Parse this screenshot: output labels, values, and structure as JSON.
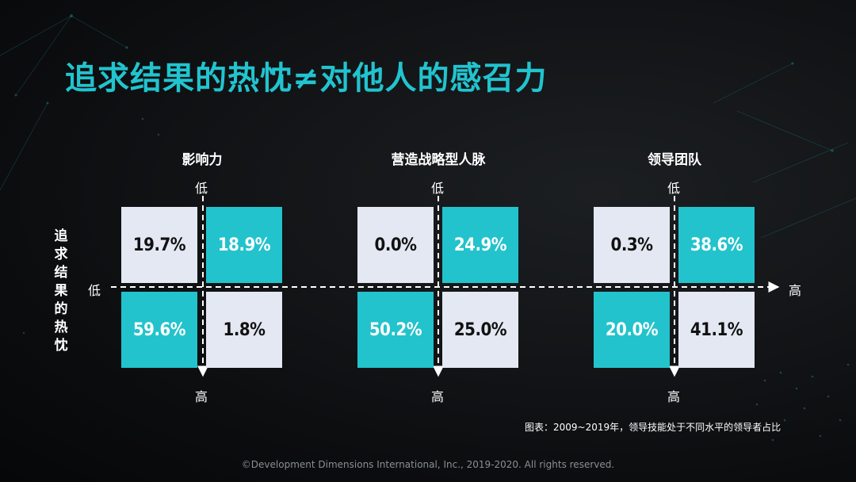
{
  "slide": {
    "title": "追求结果的热忱≠对他人的感召力",
    "row_axis_label": "追求结果的热忱",
    "caption": "图表：2009~2019年，领导技能处于不同水平的领导者占比",
    "footer": "©Development  Dimensions International, Inc., 2019-2020.  All rights reserved."
  },
  "labels": {
    "low": "低",
    "high": "高"
  },
  "colors": {
    "teal": "#22c3cc",
    "light": "#e3e8f3",
    "title": "#21c4cf"
  },
  "chart_data": [
    {
      "type": "heatmap",
      "title": "影响力",
      "cells": [
        {
          "row": "低",
          "col": "低",
          "value": "19.7%",
          "color": "light"
        },
        {
          "row": "低",
          "col": "高",
          "value": "18.9%",
          "color": "teal"
        },
        {
          "row": "高",
          "col": "低",
          "value": "59.6%",
          "color": "teal"
        },
        {
          "row": "高",
          "col": "高",
          "value": "1.8%",
          "color": "light"
        }
      ]
    },
    {
      "type": "heatmap",
      "title": "营造战略型人脉",
      "cells": [
        {
          "row": "低",
          "col": "低",
          "value": "0.0%",
          "color": "light"
        },
        {
          "row": "低",
          "col": "高",
          "value": "24.9%",
          "color": "teal"
        },
        {
          "row": "高",
          "col": "低",
          "value": "50.2%",
          "color": "teal"
        },
        {
          "row": "高",
          "col": "高",
          "value": "25.0%",
          "color": "light"
        }
      ]
    },
    {
      "type": "heatmap",
      "title": "领导团队",
      "cells": [
        {
          "row": "低",
          "col": "低",
          "value": "0.3%",
          "color": "light"
        },
        {
          "row": "低",
          "col": "高",
          "value": "38.6%",
          "color": "teal"
        },
        {
          "row": "高",
          "col": "低",
          "value": "20.0%",
          "color": "teal"
        },
        {
          "row": "高",
          "col": "高",
          "value": "41.1%",
          "color": "light"
        }
      ]
    }
  ]
}
